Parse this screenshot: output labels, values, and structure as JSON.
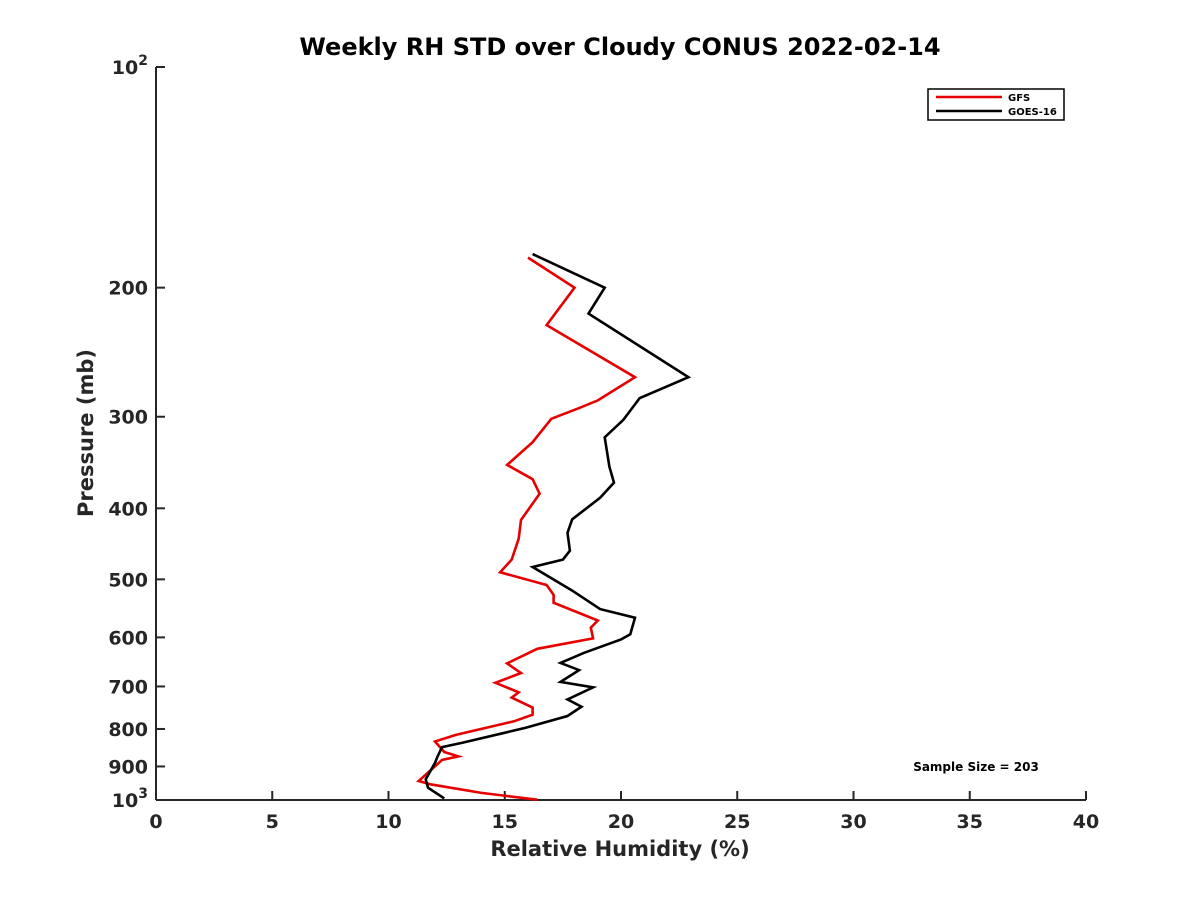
{
  "chart_data": {
    "type": "line",
    "title": "Weekly RH STD over Cloudy CONUS 2022-02-14",
    "xlabel": "Relative Humidity (%)",
    "ylabel": "Pressure (mb)",
    "xlim": [
      0,
      40
    ],
    "ylim": [
      100,
      1000
    ],
    "yscale": "log",
    "y_reversed": true,
    "grid": false,
    "legend_position": "top-right",
    "x_ticks": [
      "0",
      "5",
      "10",
      "15",
      "20",
      "25",
      "30",
      "35",
      "40"
    ],
    "y_ticks": [
      {
        "value": 100,
        "base": "10",
        "exp": "2"
      },
      {
        "value": 200,
        "label": "200"
      },
      {
        "value": 300,
        "label": "300"
      },
      {
        "value": 400,
        "label": "400"
      },
      {
        "value": 500,
        "label": "500"
      },
      {
        "value": 600,
        "label": "600"
      },
      {
        "value": 700,
        "label": "700"
      },
      {
        "value": 800,
        "label": "800"
      },
      {
        "value": 900,
        "label": "900"
      },
      {
        "value": 1000,
        "base": "10",
        "exp": "3"
      }
    ],
    "annotation": "Sample Size = 203",
    "series": [
      {
        "name": "GFS",
        "color": "#e60000",
        "points": [
          [
            16.0,
            182
          ],
          [
            18.0,
            200
          ],
          [
            16.8,
            225
          ],
          [
            20.6,
            265
          ],
          [
            19.0,
            285
          ],
          [
            18.2,
            292
          ],
          [
            17.0,
            302
          ],
          [
            16.2,
            325
          ],
          [
            15.1,
            349
          ],
          [
            16.2,
            365
          ],
          [
            16.5,
            382
          ],
          [
            15.7,
            415
          ],
          [
            15.6,
            440
          ],
          [
            15.3,
            470
          ],
          [
            14.8,
            489
          ],
          [
            16.8,
            509
          ],
          [
            17.1,
            525
          ],
          [
            17.1,
            538
          ],
          [
            19.0,
            569
          ],
          [
            18.7,
            582
          ],
          [
            18.8,
            602
          ],
          [
            16.4,
            622
          ],
          [
            15.1,
            651
          ],
          [
            15.7,
            671
          ],
          [
            14.6,
            692
          ],
          [
            15.6,
            713
          ],
          [
            15.3,
            725
          ],
          [
            16.2,
            748
          ],
          [
            16.2,
            765
          ],
          [
            15.4,
            781
          ],
          [
            12.9,
            815
          ],
          [
            12.0,
            832
          ],
          [
            12.4,
            860
          ],
          [
            13.0,
            872
          ],
          [
            12.3,
            882
          ],
          [
            11.3,
            942
          ],
          [
            11.8,
            952
          ],
          [
            14.0,
            978
          ],
          [
            16.4,
            999
          ]
        ]
      },
      {
        "name": "GOES-16",
        "color": "#000000",
        "points": [
          [
            16.2,
            180
          ],
          [
            19.3,
            200
          ],
          [
            18.6,
            217
          ],
          [
            22.9,
            265
          ],
          [
            20.8,
            283
          ],
          [
            20.1,
            303
          ],
          [
            19.3,
            320
          ],
          [
            19.5,
            351
          ],
          [
            19.7,
            369
          ],
          [
            19.1,
            387
          ],
          [
            17.9,
            414
          ],
          [
            17.7,
            432
          ],
          [
            17.8,
            457
          ],
          [
            17.5,
            470
          ],
          [
            16.2,
            481
          ],
          [
            17.9,
            518
          ],
          [
            19.1,
            549
          ],
          [
            20.6,
            564
          ],
          [
            20.4,
            594
          ],
          [
            20.0,
            604
          ],
          [
            18.4,
            630
          ],
          [
            17.4,
            650
          ],
          [
            18.2,
            665
          ],
          [
            17.4,
            690
          ],
          [
            18.8,
            702
          ],
          [
            17.7,
            729
          ],
          [
            18.3,
            746
          ],
          [
            17.7,
            768
          ],
          [
            15.9,
            797
          ],
          [
            13.2,
            835
          ],
          [
            12.3,
            847
          ],
          [
            12.1,
            874
          ],
          [
            12.0,
            890
          ],
          [
            11.6,
            937
          ],
          [
            11.7,
            962
          ],
          [
            12.4,
            995
          ]
        ]
      }
    ]
  }
}
